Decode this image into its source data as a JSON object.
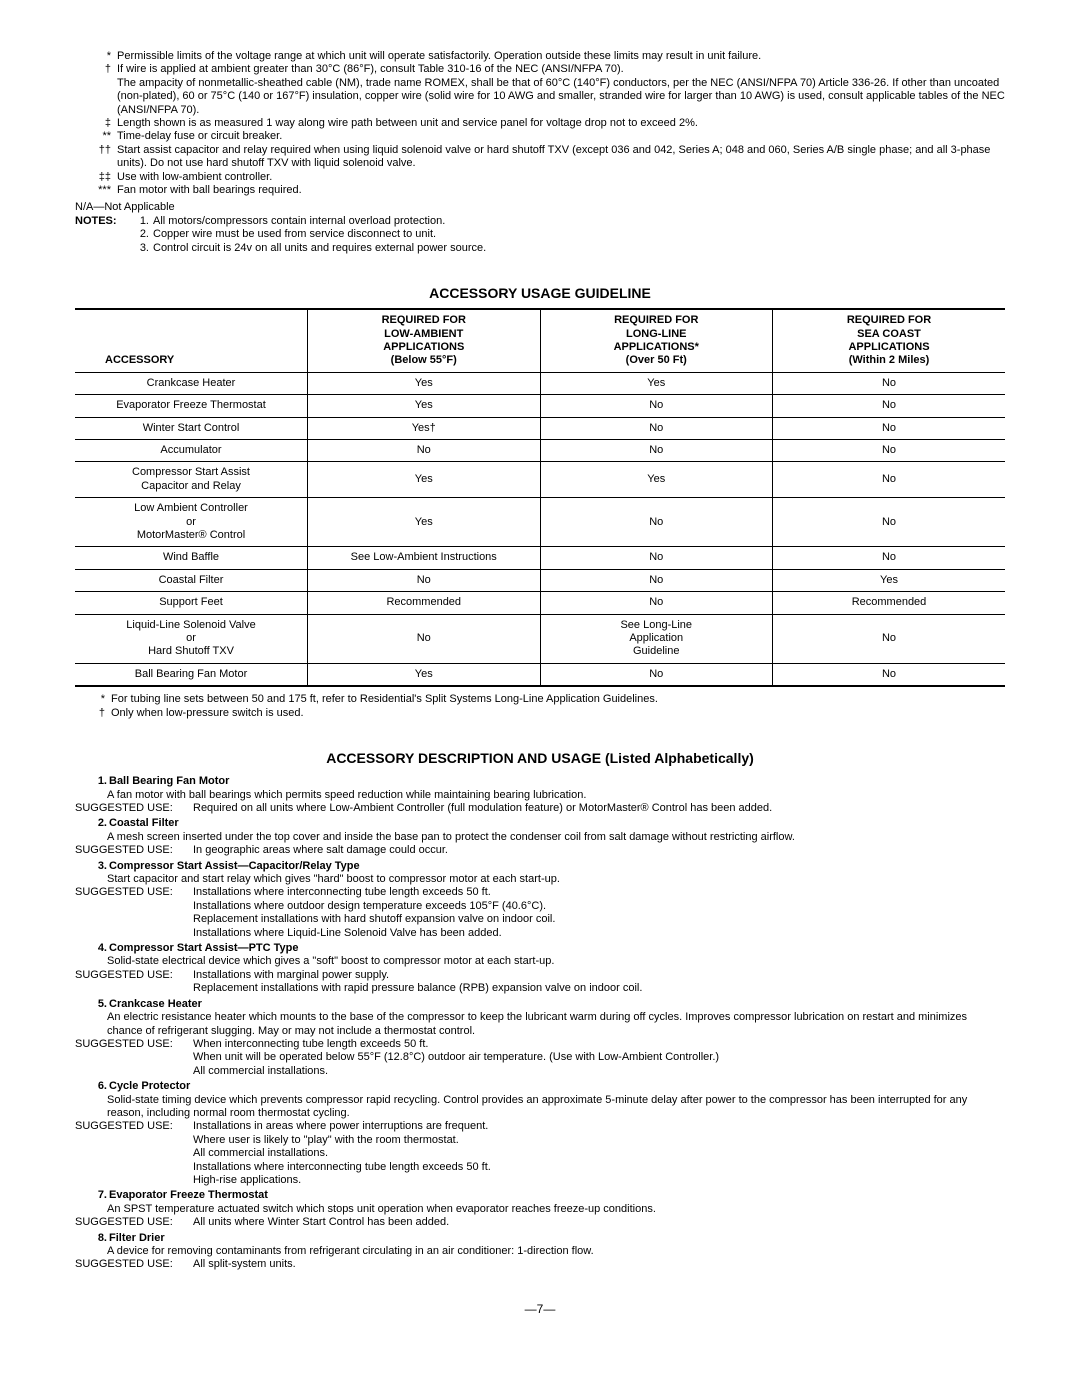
{
  "topFootnotes": [
    {
      "sym": "*",
      "text": "Permissible limits of the voltage range at which unit will operate satisfactorily. Operation outside these limits may result in unit failure."
    },
    {
      "sym": "†",
      "text": "If wire is applied at ambient greater than 30°C (86°F), consult Table 310-16 of the NEC (ANSI/NFPA 70).\nThe ampacity of nonmetallic-sheathed cable (NM), trade name ROMEX, shall be that of 60°C (140°F) conductors, per the NEC (ANSI/NFPA 70) Article 336-26. If other than uncoated (non-plated), 60 or 75°C (140 or 167°F) insulation, copper wire (solid wire for 10 AWG and smaller, stranded wire for larger than 10 AWG) is used, consult applicable tables of the NEC (ANSI/NFPA 70)."
    },
    {
      "sym": "‡",
      "text": "Length shown is as measured 1 way along wire path between unit and service panel for voltage drop not to exceed 2%."
    },
    {
      "sym": "**",
      "text": "Time-delay fuse or circuit breaker."
    },
    {
      "sym": "††",
      "text": "Start assist capacitor and relay required when using liquid solenoid valve or hard shutoff TXV (except 036 and 042, Series A; 048 and 060, Series A/B single phase; and all 3-phase units). Do not use hard shutoff TXV with liquid solenoid valve."
    },
    {
      "sym": "‡‡",
      "text": "Use with low-ambient controller."
    },
    {
      "sym": "***",
      "text": "Fan motor with ball bearings required."
    }
  ],
  "naLine": "N/A—Not Applicable",
  "notesLabel": "NOTES:",
  "notesItems": [
    {
      "n": "1.",
      "t": "All motors/compressors contain internal overload protection."
    },
    {
      "n": "2.",
      "t": "Copper wire must be used from service disconnect to unit."
    },
    {
      "n": "3.",
      "t": "Control circuit is 24v on all units and requires external power source."
    }
  ],
  "tableTitle": "ACCESSORY USAGE GUIDELINE",
  "tableHeaders": {
    "c0": "ACCESSORY",
    "c1": "REQUIRED FOR\nLOW-AMBIENT\nAPPLICATIONS\n(Below 55°F)",
    "c2": "REQUIRED FOR\nLONG-LINE\nAPPLICATIONS*\n(Over 50 Ft)",
    "c3": "REQUIRED FOR\nSEA COAST\nAPPLICATIONS\n(Within 2 Miles)"
  },
  "tableRows": [
    {
      "a": "Crankcase Heater",
      "c1": "Yes",
      "c2": "Yes",
      "c3": "No"
    },
    {
      "a": "Evaporator Freeze Thermostat",
      "c1": "Yes",
      "c2": "No",
      "c3": "No"
    },
    {
      "a": "Winter Start Control",
      "c1": "Yes†",
      "c2": "No",
      "c3": "No"
    },
    {
      "a": "Accumulator",
      "c1": "No",
      "c2": "No",
      "c3": "No"
    },
    {
      "a": "Compressor Start Assist\nCapacitor and Relay",
      "c1": "Yes",
      "c2": "Yes",
      "c3": "No"
    },
    {
      "a": "Low Ambient Controller\nor\nMotorMaster® Control",
      "c1": "Yes",
      "c2": "No",
      "c3": "No"
    },
    {
      "a": "Wind Baffle",
      "c1": "See Low-Ambient Instructions",
      "c2": "No",
      "c3": "No"
    },
    {
      "a": "Coastal Filter",
      "c1": "No",
      "c2": "No",
      "c3": "Yes"
    },
    {
      "a": "Support Feet",
      "c1": "Recommended",
      "c2": "No",
      "c3": "Recommended"
    },
    {
      "a": "Liquid-Line Solenoid Valve\nor\nHard Shutoff TXV",
      "c1": "No",
      "c2": "See Long-Line\nApplication\nGuideline",
      "c3": "No"
    },
    {
      "a": "Ball Bearing Fan Motor",
      "c1": "Yes",
      "c2": "No",
      "c3": "No"
    }
  ],
  "tableFootnotes": [
    {
      "sym": "*",
      "text": "For tubing line sets between 50 and 175 ft, refer to Residential's Split Systems Long-Line Application Guidelines."
    },
    {
      "sym": "†",
      "text": "Only when low-pressure switch is used."
    }
  ],
  "descTitle": "ACCESSORY DESCRIPTION AND USAGE (Listed Alphabetically)",
  "suggestedLabel": "SUGGESTED USE:",
  "descriptions": [
    {
      "n": "1.",
      "title": "Ball Bearing Fan Motor",
      "body": "A fan motor with ball bearings which permits speed reduction while maintaining bearing lubrication.",
      "suggested": [
        "Required on all units where Low-Ambient Controller (full modulation feature) or MotorMaster® Control has been added."
      ]
    },
    {
      "n": "2.",
      "title": "Coastal Filter",
      "body": "A mesh screen inserted under the top cover and inside the base pan to protect the condenser coil from salt damage without restricting airflow.",
      "suggested": [
        "In geographic areas where salt damage could occur."
      ]
    },
    {
      "n": "3.",
      "title": "Compressor Start Assist—Capacitor/Relay Type",
      "body": "Start capacitor and start relay which gives \"hard\" boost to compressor motor at each start-up.",
      "suggested": [
        "Installations where interconnecting tube length exceeds 50 ft.",
        "Installations where outdoor design temperature exceeds 105°F (40.6°C).",
        "Replacement installations with hard shutoff expansion valve on indoor coil.",
        "Installations where Liquid-Line Solenoid Valve has been added."
      ]
    },
    {
      "n": "4.",
      "title": "Compressor Start Assist—PTC Type",
      "body": "Solid-state electrical device which gives a \"soft\" boost to compressor motor at each start-up.",
      "suggested": [
        "Installations with marginal power supply.",
        "Replacement installations with rapid pressure balance (RPB) expansion valve on indoor coil."
      ]
    },
    {
      "n": "5.",
      "title": "Crankcase Heater",
      "body": "An electric resistance heater which mounts to the base of the compressor to keep the lubricant warm during off cycles. Improves compressor lubrication on restart and minimizes chance of refrigerant slugging. May or may not include a thermostat control.",
      "suggested": [
        "When interconnecting tube length exceeds 50 ft.",
        "When unit will be operated below 55°F (12.8°C) outdoor air temperature. (Use with Low-Ambient Controller.)",
        "All commercial installations."
      ]
    },
    {
      "n": "6.",
      "title": "Cycle Protector",
      "body": "Solid-state timing device which prevents compressor rapid recycling. Control provides an approximate 5-minute delay after power to the compressor has been interrupted for any reason, including normal room thermostat cycling.",
      "suggested": [
        "Installations in areas where power interruptions are frequent.",
        "Where user is likely to \"play\" with the room thermostat.",
        "All commercial installations.",
        "Installations where interconnecting tube length exceeds 50 ft.",
        "High-rise applications."
      ]
    },
    {
      "n": "7.",
      "title": "Evaporator Freeze Thermostat",
      "body": "An SPST temperature actuated switch which stops unit operation when evaporator reaches freeze-up conditions.",
      "suggested": [
        "All units where Winter Start Control has been added."
      ]
    },
    {
      "n": "8.",
      "title": "Filter Drier",
      "body": "A device for removing contaminants from refrigerant circulating in an air conditioner: 1-direction flow.",
      "suggested": [
        "All split-system units."
      ]
    }
  ],
  "pageNumber": "—7—"
}
